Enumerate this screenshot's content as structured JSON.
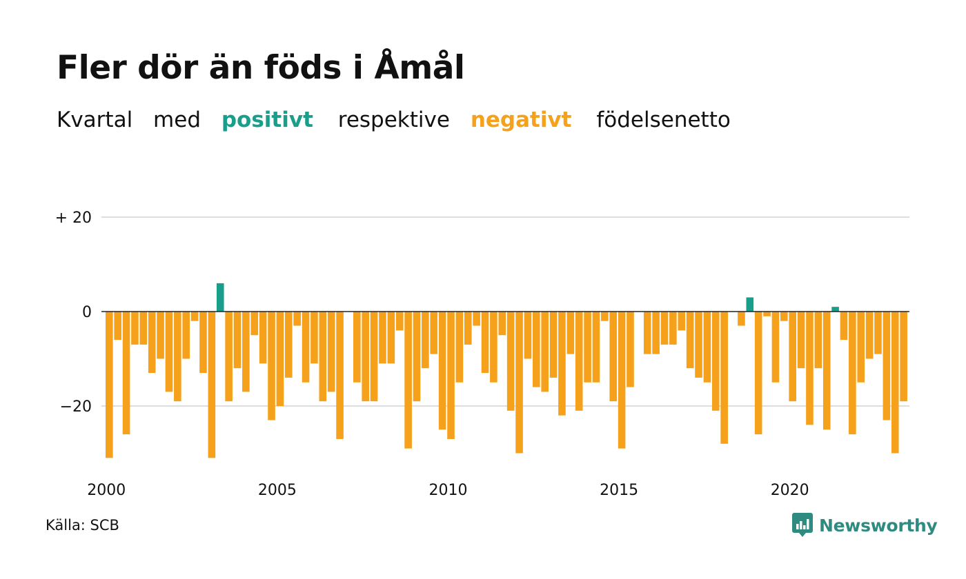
{
  "title": "Fler dör än föds i Åmål",
  "subtitle": {
    "part1": "Kvartal",
    "part2": "med",
    "positive": "positivt",
    "part3": "respektive",
    "negative": "negativt",
    "part4": "födelsenetto"
  },
  "source": "Källa: SCB",
  "brand": "Newsworthy",
  "colors": {
    "positive": "#1a9e8c",
    "negative": "#f5a11b",
    "grid": "#dddddd",
    "baseline": "#222222"
  },
  "chart_data": {
    "type": "bar",
    "x_start": "2000 Q1",
    "period": "quarter",
    "values": [
      -31,
      -6,
      -26,
      -7,
      -7,
      -13,
      -10,
      -17,
      -19,
      -10,
      -2,
      -13,
      -31,
      6,
      -19,
      -12,
      -17,
      -5,
      -11,
      -23,
      -20,
      -14,
      -3,
      -15,
      -11,
      -19,
      -17,
      -27,
      0,
      -15,
      -19,
      -19,
      -11,
      -11,
      -4,
      -29,
      -19,
      -12,
      -9,
      -25,
      -27,
      -15,
      -7,
      -3,
      -13,
      -15,
      -5,
      -21,
      -30,
      -10,
      -16,
      -17,
      -14,
      -22,
      -9,
      -21,
      -15,
      -15,
      -2,
      -19,
      -29,
      -16,
      0,
      -9,
      -9,
      -7,
      -7,
      -4,
      -12,
      -14,
      -15,
      -21,
      -28,
      0,
      -3,
      3,
      -26,
      -1,
      -15,
      -2,
      -19,
      -12,
      -24,
      -12,
      -25,
      1,
      -6,
      -26,
      -15,
      -10,
      -9,
      -23,
      -30,
      -19
    ],
    "y_ticks": [
      {
        "value": 20,
        "label": "+ 20"
      },
      {
        "value": 0,
        "label": "0"
      },
      {
        "value": -20,
        "label": "−20"
      }
    ],
    "x_ticks": [
      {
        "year": 2000,
        "label": "2000"
      },
      {
        "year": 2005,
        "label": "2005"
      },
      {
        "year": 2010,
        "label": "2010"
      },
      {
        "year": 2015,
        "label": "2015"
      },
      {
        "year": 2020,
        "label": "2020"
      }
    ],
    "ylim": [
      -33,
      20
    ],
    "grid": true,
    "legend": "none"
  }
}
